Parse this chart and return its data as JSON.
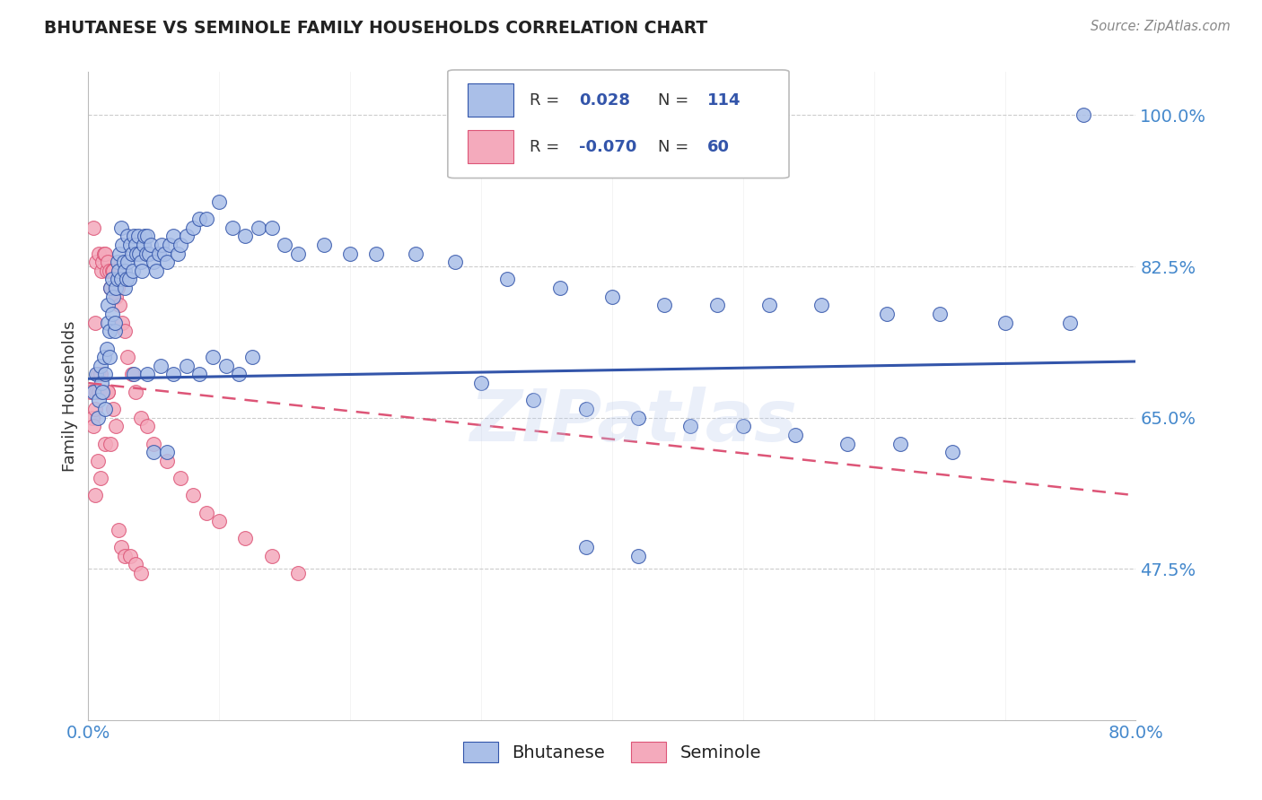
{
  "title": "BHUTANESE VS SEMINOLE FAMILY HOUSEHOLDS CORRELATION CHART",
  "source": "Source: ZipAtlas.com",
  "ylabel": "Family Households",
  "watermark": "ZIPatlas",
  "xlim": [
    0.0,
    0.8
  ],
  "ylim": [
    0.3,
    1.05
  ],
  "yticks": [
    0.475,
    0.65,
    0.825,
    1.0
  ],
  "ytick_labels": [
    "47.5%",
    "65.0%",
    "82.5%",
    "100.0%"
  ],
  "xticks": [
    0.0,
    0.1,
    0.2,
    0.3,
    0.4,
    0.5,
    0.6,
    0.7,
    0.8
  ],
  "xtick_labels": [
    "0.0%",
    "",
    "",
    "",
    "",
    "",
    "",
    "",
    "80.0%"
  ],
  "blue_color": "#AABFE8",
  "pink_color": "#F4AABC",
  "trendline_blue_color": "#3355AA",
  "trendline_pink_color": "#DD5577",
  "grid_color": "#CCCCCC",
  "axis_color": "#BBBBBB",
  "tick_color": "#4488CC",
  "title_color": "#222222",
  "source_color": "#888888",
  "ylabel_color": "#333333",
  "blue_scatter_x": [
    0.004,
    0.006,
    0.007,
    0.008,
    0.009,
    0.01,
    0.011,
    0.012,
    0.013,
    0.013,
    0.014,
    0.015,
    0.015,
    0.016,
    0.016,
    0.017,
    0.018,
    0.018,
    0.019,
    0.02,
    0.02,
    0.021,
    0.022,
    0.022,
    0.023,
    0.024,
    0.025,
    0.025,
    0.026,
    0.027,
    0.028,
    0.028,
    0.029,
    0.03,
    0.03,
    0.031,
    0.032,
    0.033,
    0.034,
    0.035,
    0.036,
    0.037,
    0.038,
    0.039,
    0.04,
    0.041,
    0.042,
    0.043,
    0.044,
    0.045,
    0.046,
    0.048,
    0.05,
    0.052,
    0.054,
    0.056,
    0.058,
    0.06,
    0.062,
    0.065,
    0.068,
    0.07,
    0.075,
    0.08,
    0.085,
    0.09,
    0.1,
    0.11,
    0.12,
    0.13,
    0.14,
    0.15,
    0.16,
    0.18,
    0.2,
    0.22,
    0.25,
    0.28,
    0.32,
    0.36,
    0.4,
    0.44,
    0.48,
    0.52,
    0.56,
    0.61,
    0.65,
    0.7,
    0.75,
    0.76,
    0.035,
    0.045,
    0.055,
    0.065,
    0.075,
    0.085,
    0.095,
    0.105,
    0.115,
    0.125,
    0.05,
    0.06,
    0.3,
    0.34,
    0.38,
    0.42,
    0.46,
    0.5,
    0.54,
    0.58,
    0.62,
    0.66,
    0.38,
    0.42
  ],
  "blue_scatter_y": [
    0.68,
    0.7,
    0.65,
    0.67,
    0.71,
    0.69,
    0.68,
    0.72,
    0.7,
    0.66,
    0.73,
    0.76,
    0.78,
    0.75,
    0.72,
    0.8,
    0.77,
    0.81,
    0.79,
    0.75,
    0.76,
    0.8,
    0.83,
    0.81,
    0.82,
    0.84,
    0.81,
    0.87,
    0.85,
    0.83,
    0.82,
    0.8,
    0.81,
    0.83,
    0.86,
    0.81,
    0.85,
    0.84,
    0.82,
    0.86,
    0.85,
    0.84,
    0.86,
    0.84,
    0.83,
    0.82,
    0.85,
    0.86,
    0.84,
    0.86,
    0.84,
    0.85,
    0.83,
    0.82,
    0.84,
    0.85,
    0.84,
    0.83,
    0.85,
    0.86,
    0.84,
    0.85,
    0.86,
    0.87,
    0.88,
    0.88,
    0.9,
    0.87,
    0.86,
    0.87,
    0.87,
    0.85,
    0.84,
    0.85,
    0.84,
    0.84,
    0.84,
    0.83,
    0.81,
    0.8,
    0.79,
    0.78,
    0.78,
    0.78,
    0.78,
    0.77,
    0.77,
    0.76,
    0.76,
    1.0,
    0.7,
    0.7,
    0.71,
    0.7,
    0.71,
    0.7,
    0.72,
    0.71,
    0.7,
    0.72,
    0.61,
    0.61,
    0.69,
    0.67,
    0.66,
    0.65,
    0.64,
    0.64,
    0.63,
    0.62,
    0.62,
    0.61,
    0.5,
    0.49
  ],
  "pink_scatter_x": [
    0.002,
    0.003,
    0.004,
    0.004,
    0.005,
    0.005,
    0.006,
    0.006,
    0.007,
    0.008,
    0.008,
    0.009,
    0.01,
    0.01,
    0.011,
    0.012,
    0.012,
    0.013,
    0.014,
    0.015,
    0.015,
    0.016,
    0.017,
    0.018,
    0.019,
    0.02,
    0.021,
    0.022,
    0.024,
    0.026,
    0.028,
    0.03,
    0.033,
    0.036,
    0.04,
    0.045,
    0.05,
    0.06,
    0.07,
    0.08,
    0.09,
    0.1,
    0.12,
    0.14,
    0.16,
    0.005,
    0.007,
    0.009,
    0.011,
    0.013,
    0.015,
    0.017,
    0.019,
    0.021,
    0.023,
    0.025,
    0.028,
    0.032,
    0.036,
    0.04
  ],
  "pink_scatter_y": [
    0.68,
    0.65,
    0.64,
    0.87,
    0.66,
    0.76,
    0.68,
    0.83,
    0.7,
    0.68,
    0.84,
    0.7,
    0.82,
    0.68,
    0.83,
    0.84,
    0.68,
    0.84,
    0.82,
    0.83,
    0.68,
    0.82,
    0.8,
    0.82,
    0.82,
    0.8,
    0.79,
    0.8,
    0.78,
    0.76,
    0.75,
    0.72,
    0.7,
    0.68,
    0.65,
    0.64,
    0.62,
    0.6,
    0.58,
    0.56,
    0.54,
    0.53,
    0.51,
    0.49,
    0.47,
    0.56,
    0.6,
    0.58,
    0.68,
    0.62,
    0.68,
    0.62,
    0.66,
    0.64,
    0.52,
    0.5,
    0.49,
    0.49,
    0.48,
    0.47
  ],
  "blue_trendline_x": [
    0.0,
    0.8
  ],
  "blue_trendline_y": [
    0.695,
    0.715
  ],
  "pink_trendline_x": [
    0.0,
    0.8
  ],
  "pink_trendline_y": [
    0.69,
    0.56
  ]
}
